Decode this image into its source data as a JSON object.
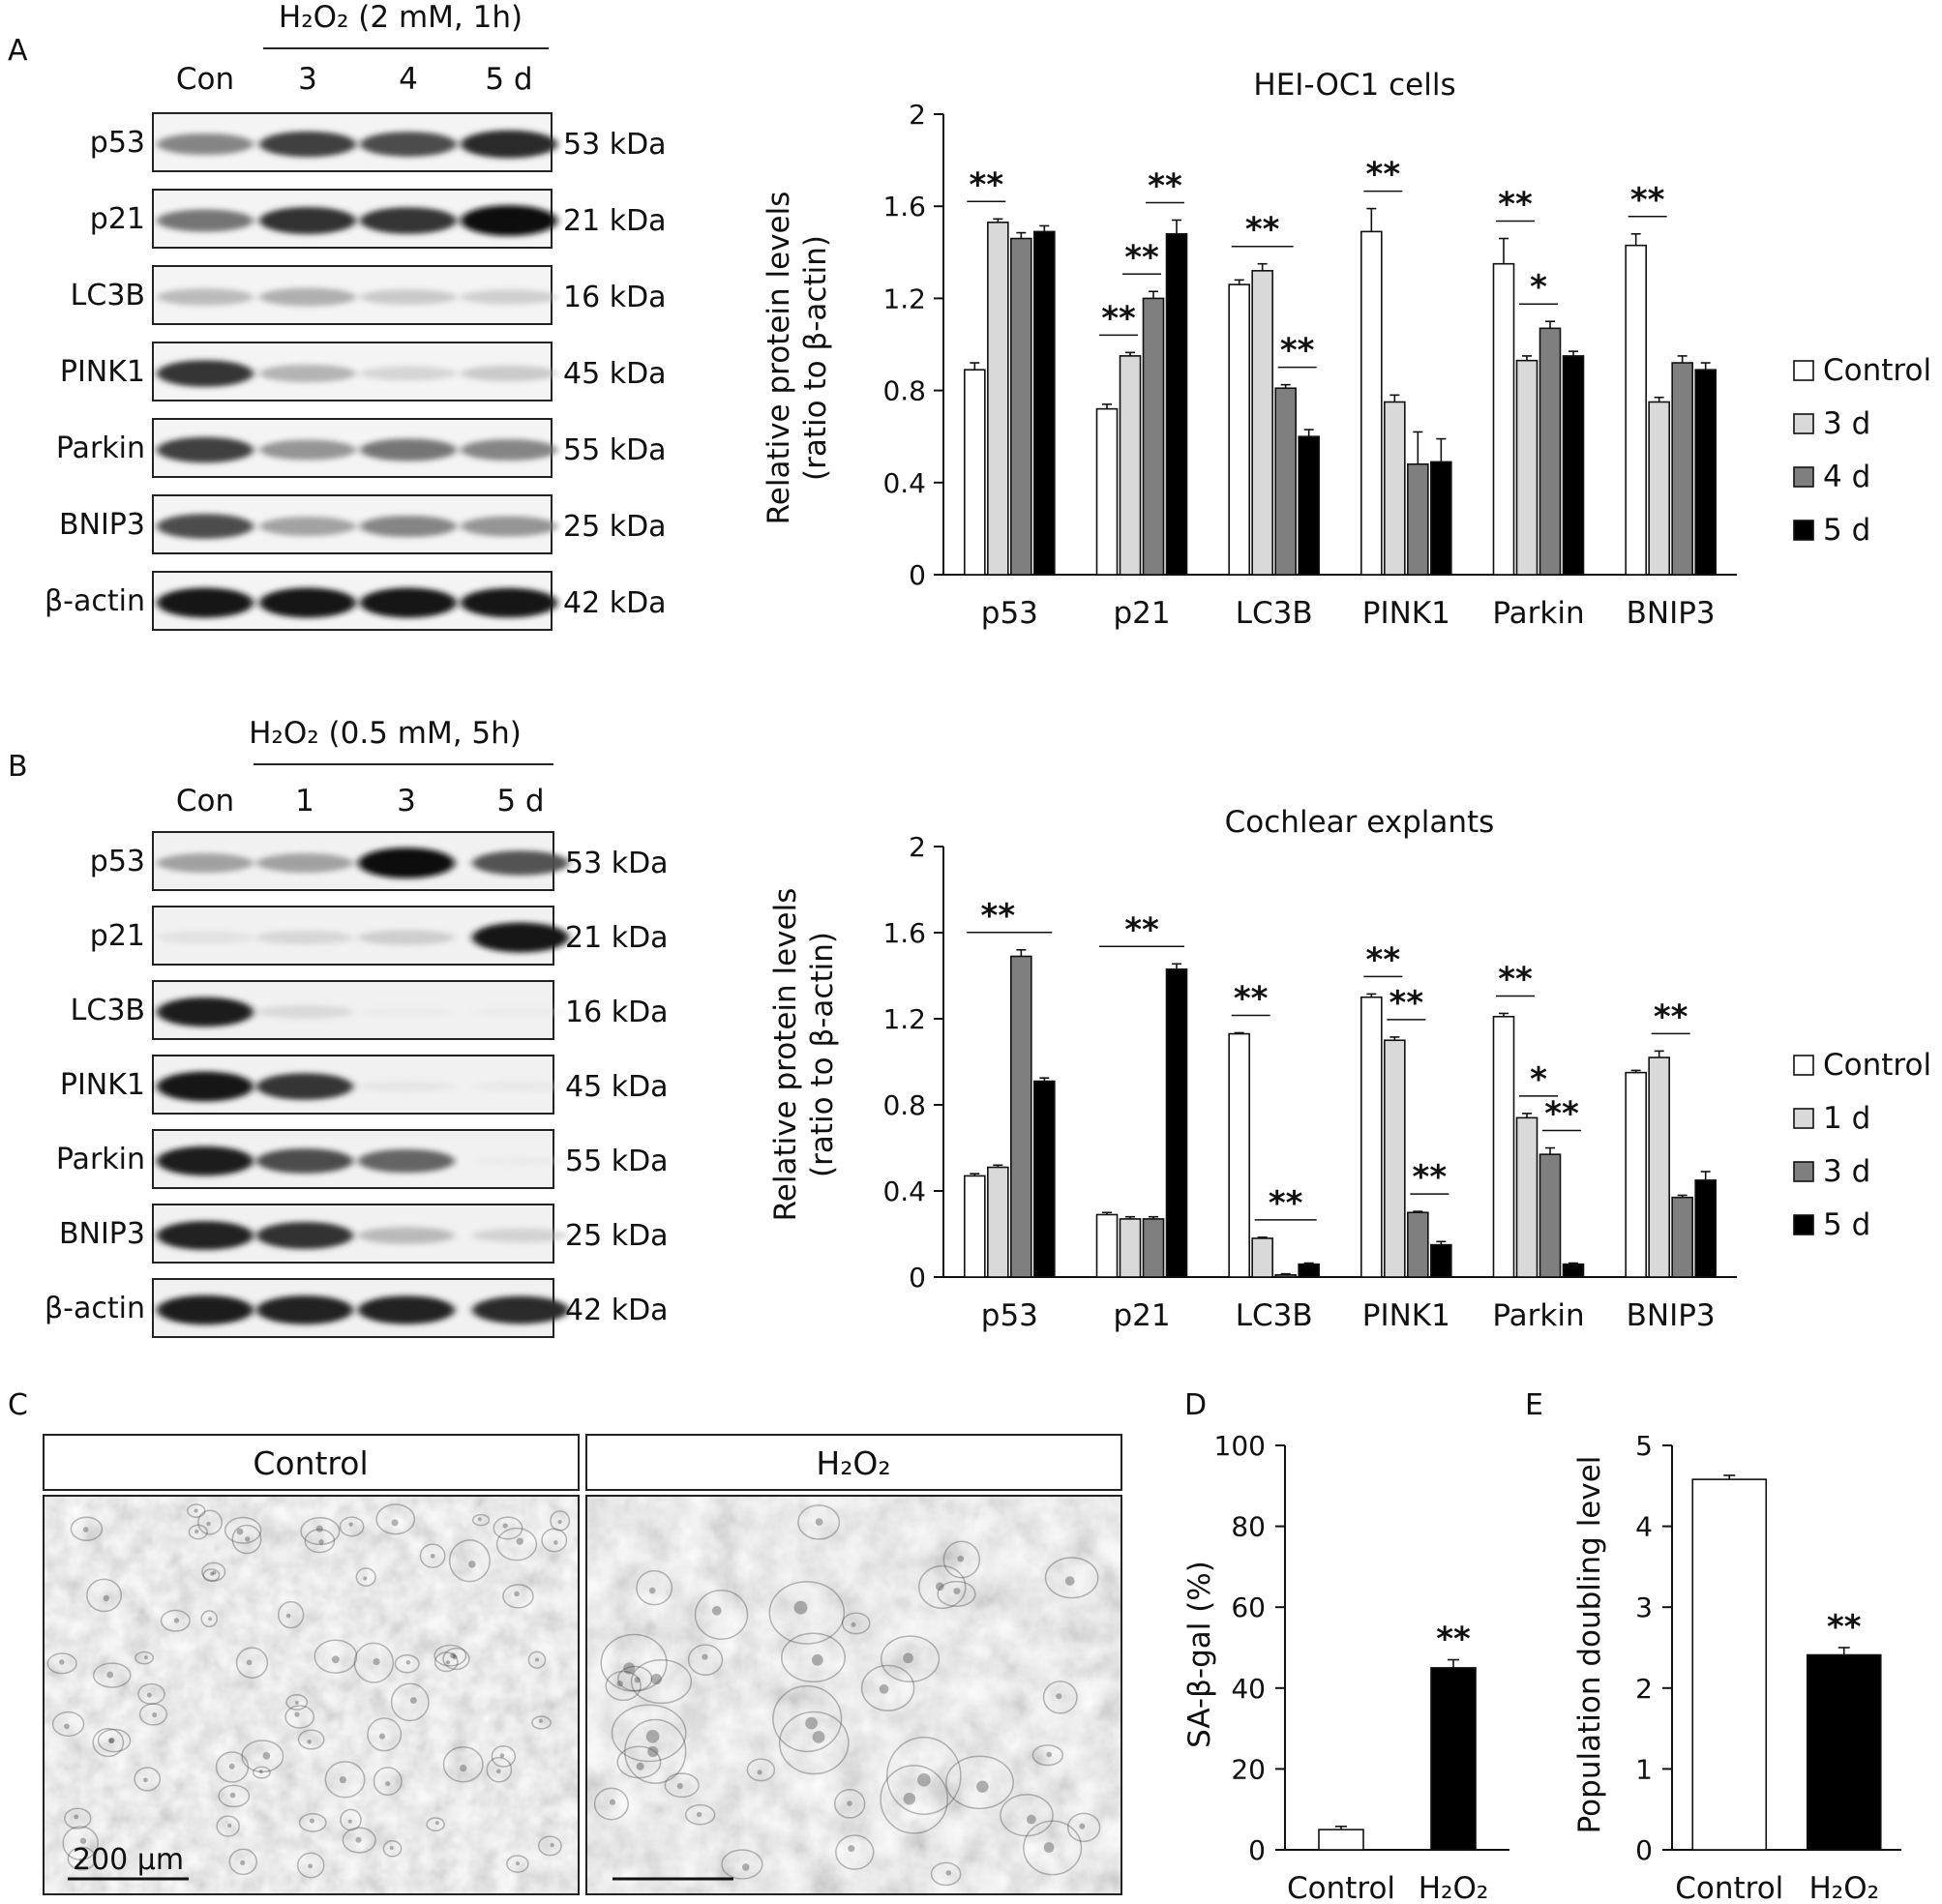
{
  "panels": {
    "A": {
      "letter": "A",
      "treatment_label": "H₂O₂ (2 mM, 1h)",
      "lanes": [
        "Con",
        "3",
        "4",
        "5 d"
      ],
      "blots": [
        {
          "protein": "p53",
          "size": "53 kDa",
          "intensity": [
            0.55,
            0.75,
            0.72,
            0.85
          ]
        },
        {
          "protein": "p21",
          "size": "21 kDa",
          "intensity": [
            0.6,
            0.82,
            0.8,
            0.98
          ]
        },
        {
          "protein": "LC3B",
          "size": "16 kDa",
          "intensity": [
            0.35,
            0.4,
            0.28,
            0.25
          ]
        },
        {
          "protein": "PINK1",
          "size": "45 kDa",
          "intensity": [
            0.8,
            0.38,
            0.22,
            0.28
          ]
        },
        {
          "protein": "Parkin",
          "size": "55 kDa",
          "intensity": [
            0.75,
            0.5,
            0.6,
            0.55
          ]
        },
        {
          "protein": "BNIP3",
          "size": "25 kDa",
          "intensity": [
            0.72,
            0.45,
            0.55,
            0.5
          ]
        },
        {
          "protein": "β-actin",
          "size": "42 kDa",
          "intensity": [
            0.95,
            0.95,
            0.95,
            0.93
          ]
        }
      ],
      "chart_data": {
        "type": "bar",
        "title": "HEI-OC1 cells",
        "ylabel_lines": [
          "Relative protein levels",
          "(ratio to β-actin)"
        ],
        "ylim": [
          0,
          2
        ],
        "yticks": [
          "0",
          "0.4",
          "0.8",
          "1.2",
          "1.6",
          "2"
        ],
        "categories": [
          "p53",
          "p21",
          "LC3B",
          "PINK1",
          "Parkin",
          "BNIP3"
        ],
        "series": [
          {
            "name": "Control",
            "color": "#ffffff",
            "values": [
              0.89,
              0.72,
              1.26,
              1.49,
              1.35,
              1.43
            ],
            "errors": [
              0.03,
              0.02,
              0.02,
              0.1,
              0.11,
              0.05
            ]
          },
          {
            "name": "3 d",
            "color": "#d9d9d9",
            "values": [
              1.53,
              0.95,
              1.32,
              0.75,
              0.93,
              0.75
            ],
            "errors": [
              0.015,
              0.015,
              0.03,
              0.03,
              0.02,
              0.02
            ]
          },
          {
            "name": "4 d",
            "color": "#7f7f7f",
            "values": [
              1.46,
              1.2,
              0.81,
              0.48,
              1.07,
              0.92
            ],
            "errors": [
              0.025,
              0.03,
              0.015,
              0.14,
              0.03,
              0.03
            ]
          },
          {
            "name": "5 d",
            "color": "#000000",
            "values": [
              1.49,
              1.48,
              0.6,
              0.49,
              0.95,
              0.89
            ],
            "errors": [
              0.025,
              0.06,
              0.03,
              0.1,
              0.02,
              0.03
            ]
          }
        ],
        "significance": [
          {
            "category": 0,
            "from": 0,
            "to": 1,
            "label": "**"
          },
          {
            "category": 1,
            "from": 0,
            "to": 1,
            "label": "**"
          },
          {
            "category": 1,
            "from": 1,
            "to": 2,
            "label": "**"
          },
          {
            "category": 1,
            "from": 2,
            "to": 3,
            "label": "**"
          },
          {
            "category": 2,
            "from": 0,
            "to": 2,
            "label": "**"
          },
          {
            "category": 2,
            "from": 2,
            "to": 3,
            "label": "**"
          },
          {
            "category": 3,
            "from": 0,
            "to": 1,
            "label": "**"
          },
          {
            "category": 4,
            "from": 0,
            "to": 1,
            "label": "**"
          },
          {
            "category": 4,
            "from": 1,
            "to": 2,
            "label": "*"
          },
          {
            "category": 5,
            "from": 0,
            "to": 1,
            "label": "**"
          }
        ]
      }
    },
    "B": {
      "letter": "B",
      "treatment_label": "H₂O₂ (0.5 mM, 5h)",
      "lanes": [
        "Con",
        "1",
        "3",
        "5 d"
      ],
      "blots": [
        {
          "protein": "p53",
          "size": "53 kDa",
          "intensity": [
            0.45,
            0.45,
            0.98,
            0.7
          ]
        },
        {
          "protein": "p21",
          "size": "21 kDa",
          "intensity": [
            0.12,
            0.2,
            0.25,
            0.95
          ]
        },
        {
          "protein": "LC3B",
          "size": "16 kDa",
          "intensity": [
            0.92,
            0.18,
            0.02,
            0.02
          ]
        },
        {
          "protein": "PINK1",
          "size": "45 kDa",
          "intensity": [
            0.95,
            0.8,
            0.08,
            0.05
          ]
        },
        {
          "protein": "Parkin",
          "size": "55 kDa",
          "intensity": [
            0.92,
            0.72,
            0.65,
            0.03
          ]
        },
        {
          "protein": "BNIP3",
          "size": "25 kDa",
          "intensity": [
            0.9,
            0.82,
            0.35,
            0.22
          ]
        },
        {
          "protein": "β-actin",
          "size": "42 kDa",
          "intensity": [
            0.92,
            0.9,
            0.88,
            0.85
          ]
        }
      ],
      "chart_data": {
        "type": "bar",
        "title": "Cochlear explants",
        "ylabel_lines": [
          "Relative protein levels",
          "(ratio  to β-actin)"
        ],
        "ylim": [
          0,
          2
        ],
        "yticks": [
          "0",
          "0.4",
          "0.8",
          "1.2",
          "1.6",
          "2"
        ],
        "categories": [
          "p53",
          "p21",
          "LC3B",
          "PINK1",
          "Parkin",
          "BNIP3"
        ],
        "series": [
          {
            "name": "Control",
            "color": "#ffffff",
            "values": [
              0.47,
              0.29,
              1.13,
              1.3,
              1.21,
              0.95
            ],
            "errors": [
              0.01,
              0.01,
              0.005,
              0.015,
              0.015,
              0.01
            ]
          },
          {
            "name": "1 d",
            "color": "#d9d9d9",
            "values": [
              0.51,
              0.27,
              0.18,
              1.1,
              0.74,
              1.02
            ],
            "errors": [
              0.01,
              0.01,
              0.005,
              0.015,
              0.02,
              0.03
            ]
          },
          {
            "name": "3 d",
            "color": "#7f7f7f",
            "values": [
              1.49,
              0.27,
              0.01,
              0.3,
              0.57,
              0.37
            ],
            "errors": [
              0.03,
              0.01,
              0.005,
              0.005,
              0.03,
              0.01
            ]
          },
          {
            "name": "5 d",
            "color": "#000000",
            "values": [
              0.91,
              1.43,
              0.06,
              0.15,
              0.06,
              0.45
            ],
            "errors": [
              0.015,
              0.025,
              0.005,
              0.015,
              0.005,
              0.04
            ]
          }
        ],
        "significance": [
          {
            "category": 0,
            "from": 0,
            "to": 2,
            "label": "**"
          },
          {
            "category": 0,
            "from": 0,
            "to": 3,
            "label": ""
          },
          {
            "category": 1,
            "from": 0,
            "to": 3,
            "label": "**"
          },
          {
            "category": 2,
            "from": 0,
            "to": 1,
            "label": "**"
          },
          {
            "category": 2,
            "from": 1,
            "to": 3,
            "label": "**"
          },
          {
            "category": 3,
            "from": 0,
            "to": 1,
            "label": "**"
          },
          {
            "category": 3,
            "from": 1,
            "to": 2,
            "label": "**"
          },
          {
            "category": 3,
            "from": 2,
            "to": 3,
            "label": "**"
          },
          {
            "category": 4,
            "from": 0,
            "to": 1,
            "label": "**"
          },
          {
            "category": 4,
            "from": 1,
            "to": 2,
            "label": "*"
          },
          {
            "category": 4,
            "from": 2,
            "to": 3,
            "label": "**"
          },
          {
            "category": 5,
            "from": 1,
            "to": 2,
            "label": "**"
          }
        ]
      }
    },
    "C": {
      "letter": "C",
      "image_labels": [
        "Control",
        "H₂O₂"
      ],
      "scale_bar": "200 μm"
    },
    "D": {
      "letter": "D",
      "chart_data": {
        "type": "bar",
        "ylabel": "SA-β-gal (%)",
        "ylim": [
          0,
          100
        ],
        "yticks": [
          "0",
          "20",
          "40",
          "60",
          "80",
          "100"
        ],
        "categories": [
          "Control",
          "H₂O₂"
        ],
        "values": [
          5,
          45
        ],
        "errors": [
          0.8,
          2
        ],
        "colors": [
          "#ffffff",
          "#000000"
        ],
        "significance": [
          "",
          "**"
        ]
      }
    },
    "E": {
      "letter": "E",
      "chart_data": {
        "type": "bar",
        "ylabel": "Population doubling level",
        "ylim": [
          0,
          5
        ],
        "yticks": [
          "0",
          "1",
          "2",
          "3",
          "4",
          "5"
        ],
        "categories": [
          "Control",
          "H₂O₂"
        ],
        "values": [
          4.58,
          2.41
        ],
        "errors": [
          0.05,
          0.09
        ],
        "colors": [
          "#ffffff",
          "#000000"
        ],
        "significance": [
          "",
          "**"
        ]
      }
    }
  }
}
